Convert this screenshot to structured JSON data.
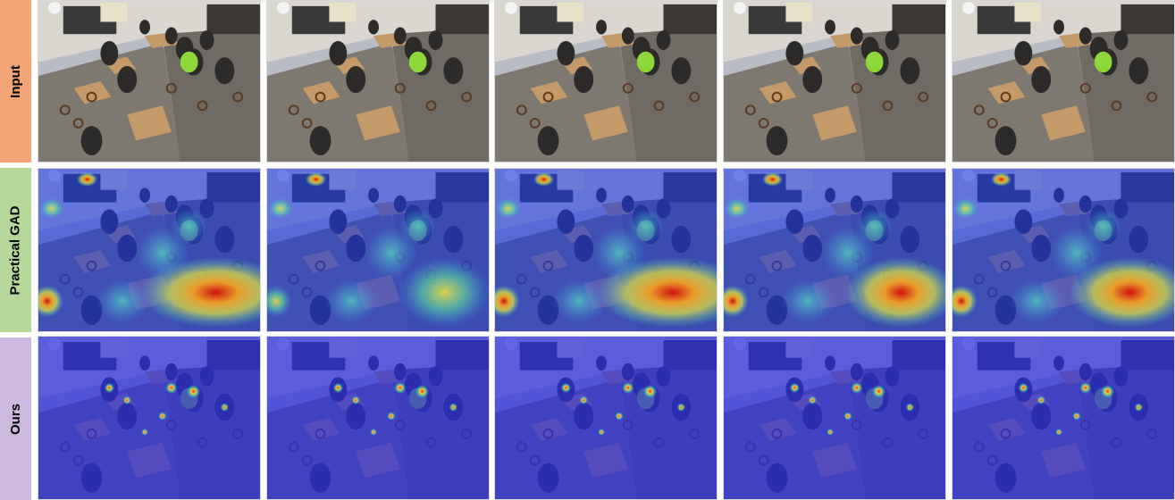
{
  "rows": [
    {
      "label": "Input",
      "mode": "input",
      "label_color": "#f2a477"
    },
    {
      "label": "Practical GAD",
      "mode": "gad",
      "label_color": "#b6d89a"
    },
    {
      "label": "Ours",
      "mode": "ours",
      "label_color": "#cdb8df"
    }
  ],
  "column_count": 5
}
